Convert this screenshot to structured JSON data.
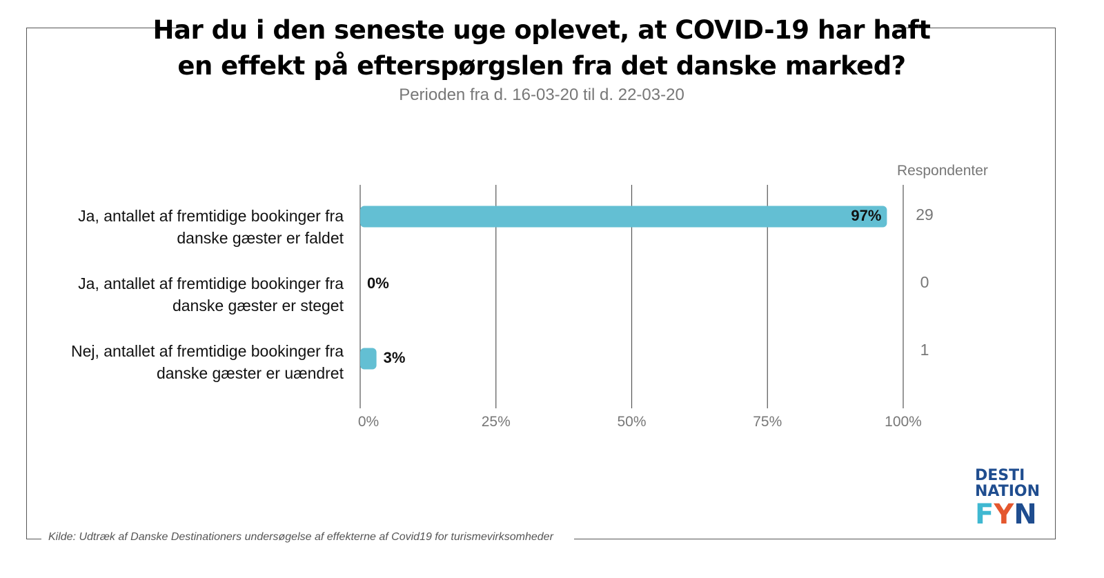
{
  "title_line1": "Har du i den seneste uge oplevet, at COVID-19 har haft",
  "title_line2": "en effekt på efterspørgslen fra det danske marked?",
  "subtitle": "Perioden fra d. 16-03-20 til d. 22-03-20",
  "respondents_header": "Respondenter",
  "source": "Kilde: Udtræk af Danske Destinationers undersøgelse af effekterne af Covid19 for turismevirksomheder",
  "logo": {
    "line1": "DESTI",
    "line2": "NATION",
    "letters": [
      "F",
      "Y",
      "N"
    ],
    "letter_colors": [
      "#3fb8d1",
      "#e4572e",
      "#1f4d8f"
    ],
    "text_color": "#1f4d8f"
  },
  "colors": {
    "bar": "#63bfd3",
    "grid": "#555555",
    "axis_text": "#777777"
  },
  "chart_data": {
    "type": "bar",
    "orientation": "horizontal",
    "categories": [
      [
        "Ja, antallet af fremtidige bookinger fra",
        "danske gæster er faldet"
      ],
      [
        "Ja, antallet af fremtidige bookinger fra",
        "danske gæster er steget"
      ],
      [
        "Nej, antallet af fremtidige bookinger fra",
        "danske gæster er uændret"
      ]
    ],
    "values": [
      97,
      0,
      3
    ],
    "value_labels": [
      "97%",
      "0%",
      "3%"
    ],
    "respondents": [
      "29",
      "0",
      "1"
    ],
    "xlim": [
      0,
      100
    ],
    "xticks": [
      0,
      25,
      50,
      75,
      100
    ],
    "xtick_labels": [
      "0%",
      "25%",
      "50%",
      "75%",
      "100%"
    ],
    "grid": true
  }
}
